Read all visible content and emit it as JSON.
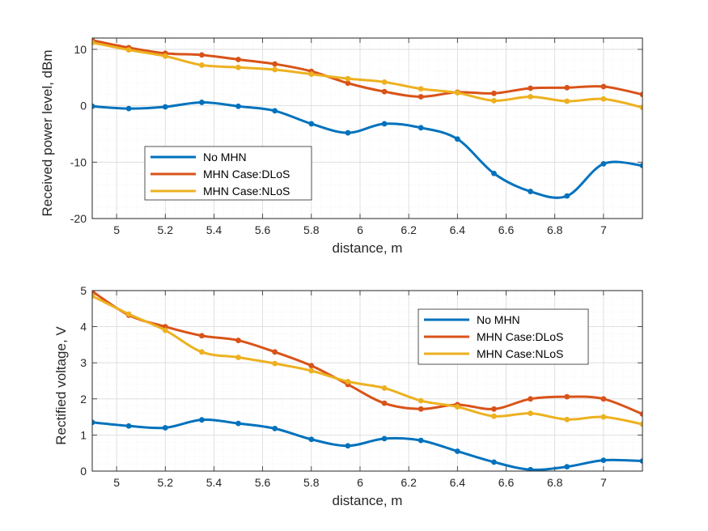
{
  "colors": {
    "no_mhn": "#0072BD",
    "dlos": "#D95319",
    "nlos": "#EDB120",
    "grid": "#dcdcdc",
    "axis": "#262626"
  },
  "chart_data": [
    {
      "type": "line",
      "xlabel": "distance, m",
      "ylabel": "Received power level, dBm",
      "xlim": [
        4.9,
        7.16
      ],
      "ylim": [
        -20,
        12
      ],
      "xticks": [
        5,
        5.2,
        5.4,
        5.6,
        5.8,
        6,
        6.2,
        6.4,
        6.6,
        6.8,
        7
      ],
      "xtick_labels": [
        "5",
        "5.2",
        "5.4",
        "5.6",
        "5.8",
        "6",
        "6.2",
        "6.4",
        "6.6",
        "6.8",
        "7"
      ],
      "yticks": [
        -20,
        -10,
        0,
        10
      ],
      "ytick_labels": [
        "-20",
        "-10",
        "0",
        "10"
      ],
      "grid": true,
      "legend_position": "lower-left",
      "x": [
        4.9,
        5.05,
        5.2,
        5.35,
        5.5,
        5.65,
        5.8,
        5.95,
        6.1,
        6.25,
        6.4,
        6.55,
        6.7,
        6.85,
        7.0,
        7.16
      ],
      "series": [
        {
          "name": "No MHN",
          "values": [
            -0.1,
            -0.5,
            -0.2,
            0.6,
            -0.1,
            -0.9,
            -3.2,
            -4.8,
            -3.2,
            -3.9,
            -5.9,
            -12.0,
            -15.2,
            -16.0,
            -10.3,
            -10.6
          ]
        },
        {
          "name": "MHN Case:DLoS",
          "values": [
            11.6,
            10.3,
            9.3,
            9.0,
            8.2,
            7.4,
            6.1,
            4.0,
            2.5,
            1.6,
            2.4,
            2.2,
            3.1,
            3.2,
            3.4,
            2.0
          ]
        },
        {
          "name": "MHN Case:NLoS",
          "values": [
            11.2,
            9.9,
            8.8,
            7.2,
            6.8,
            6.4,
            5.6,
            4.8,
            4.2,
            3.0,
            2.3,
            0.9,
            1.6,
            0.8,
            1.2,
            -0.3
          ]
        }
      ]
    },
    {
      "type": "line",
      "xlabel": "distance, m",
      "ylabel": "Rectified voltage, V",
      "xlim": [
        4.9,
        7.16
      ],
      "ylim": [
        0,
        5
      ],
      "xticks": [
        5,
        5.2,
        5.4,
        5.6,
        5.8,
        6,
        6.2,
        6.4,
        6.6,
        6.8,
        7
      ],
      "xtick_labels": [
        "5",
        "5.2",
        "5.4",
        "5.6",
        "5.8",
        "6",
        "6.2",
        "6.4",
        "6.6",
        "6.8",
        "7"
      ],
      "yticks": [
        0,
        1,
        2,
        3,
        4,
        5
      ],
      "ytick_labels": [
        "0",
        "1",
        "2",
        "3",
        "4",
        "5"
      ],
      "grid": true,
      "legend_position": "top-right",
      "x": [
        4.9,
        5.05,
        5.2,
        5.35,
        5.5,
        5.65,
        5.8,
        5.95,
        6.1,
        6.25,
        6.4,
        6.55,
        6.7,
        6.85,
        7.0,
        7.16
      ],
      "series": [
        {
          "name": "No MHN",
          "values": [
            1.35,
            1.25,
            1.2,
            1.42,
            1.32,
            1.18,
            0.88,
            0.7,
            0.9,
            0.85,
            0.55,
            0.25,
            0.04,
            0.12,
            0.3,
            0.28
          ]
        },
        {
          "name": "MHN Case:DLoS",
          "values": [
            4.98,
            4.32,
            4.0,
            3.75,
            3.62,
            3.3,
            2.92,
            2.4,
            1.88,
            1.72,
            1.84,
            1.72,
            2.0,
            2.06,
            2.0,
            1.58
          ]
        },
        {
          "name": "MHN Case:NLoS",
          "values": [
            4.85,
            4.35,
            3.9,
            3.3,
            3.15,
            2.98,
            2.78,
            2.48,
            2.3,
            1.95,
            1.78,
            1.52,
            1.6,
            1.43,
            1.5,
            1.3
          ]
        }
      ]
    }
  ]
}
